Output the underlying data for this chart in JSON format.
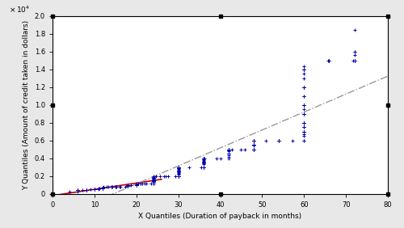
{
  "title": "",
  "xlabel": "X Quantiles (Duration of payback in months)",
  "ylabel": "Y Quantiles (Amount of credit taken in dollars)",
  "xlim": [
    0,
    80
  ],
  "ylim": [
    0,
    2.0
  ],
  "y_ticks": [
    0,
    0.2,
    0.4,
    0.6,
    0.8,
    1.0,
    1.2,
    1.4,
    1.6,
    1.8,
    2.0
  ],
  "x_ticks": [
    0,
    10,
    20,
    30,
    40,
    50,
    60,
    70,
    80
  ],
  "data_color": "#0000AA",
  "line1_color": "#CC0000",
  "line2_color": "#999999",
  "marker": "+",
  "markersize": 3,
  "background_color": "#ffffff",
  "border_color": "#000000",
  "fig_bg": "#e8e8e8"
}
